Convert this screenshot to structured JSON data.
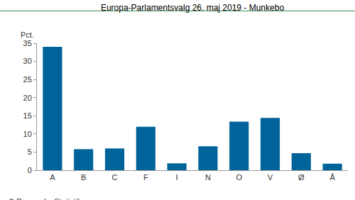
{
  "chart_data": {
    "type": "bar",
    "title": "Europa-Parlamentsvalg 26. maj 2019 - Munkebo",
    "y_label": "Pct.",
    "annotations": [
      "© Danmarks Statistik"
    ],
    "categories": [
      "A",
      "B",
      "C",
      "F",
      "I",
      "N",
      "O",
      "V",
      "Ø",
      "Å"
    ],
    "values": [
      34.0,
      5.8,
      6.0,
      12.0,
      1.9,
      6.6,
      13.4,
      14.4,
      4.7,
      1.8
    ],
    "color": "#00649a",
    "ylim": [
      0,
      35
    ],
    "yticks": [
      0,
      5,
      10,
      15,
      20,
      25,
      30,
      35
    ],
    "grid": false
  }
}
